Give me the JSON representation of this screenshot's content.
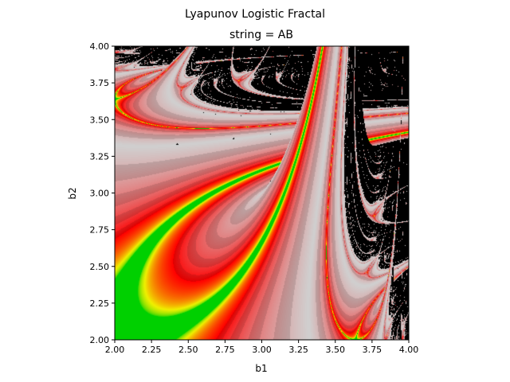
{
  "figure": {
    "suptitle": "Lyapunov Logistic Fractal"
  },
  "chart_data": {
    "type": "heatmap",
    "title": "string = AB",
    "xlabel": "b1",
    "ylabel": "b2",
    "xlim": [
      2.0,
      4.0
    ],
    "ylim": [
      2.0,
      4.0
    ],
    "xticks": [
      2.0,
      2.25,
      2.5,
      2.75,
      3.0,
      3.25,
      3.5,
      3.75,
      4.0
    ],
    "yticks": [
      2.0,
      2.25,
      2.5,
      2.75,
      3.0,
      3.25,
      3.5,
      3.75,
      4.0
    ],
    "xtick_labels": [
      "2.00",
      "2.25",
      "2.50",
      "2.75",
      "3.00",
      "3.25",
      "3.50",
      "3.75",
      "4.00"
    ],
    "ytick_labels": [
      "2.00",
      "2.25",
      "2.50",
      "2.75",
      "3.00",
      "3.25",
      "3.50",
      "3.75",
      "4.00"
    ],
    "grid": false,
    "function": "logistic map x -> b * x * (1 - x), with b alternating between b1 and b2 following the string",
    "sequence": "AB",
    "colormap": {
      "chaotic": "#000000",
      "stops": [
        "#00d000",
        "#f0f000",
        "#ff0000",
        "#d0d0d0"
      ]
    }
  }
}
